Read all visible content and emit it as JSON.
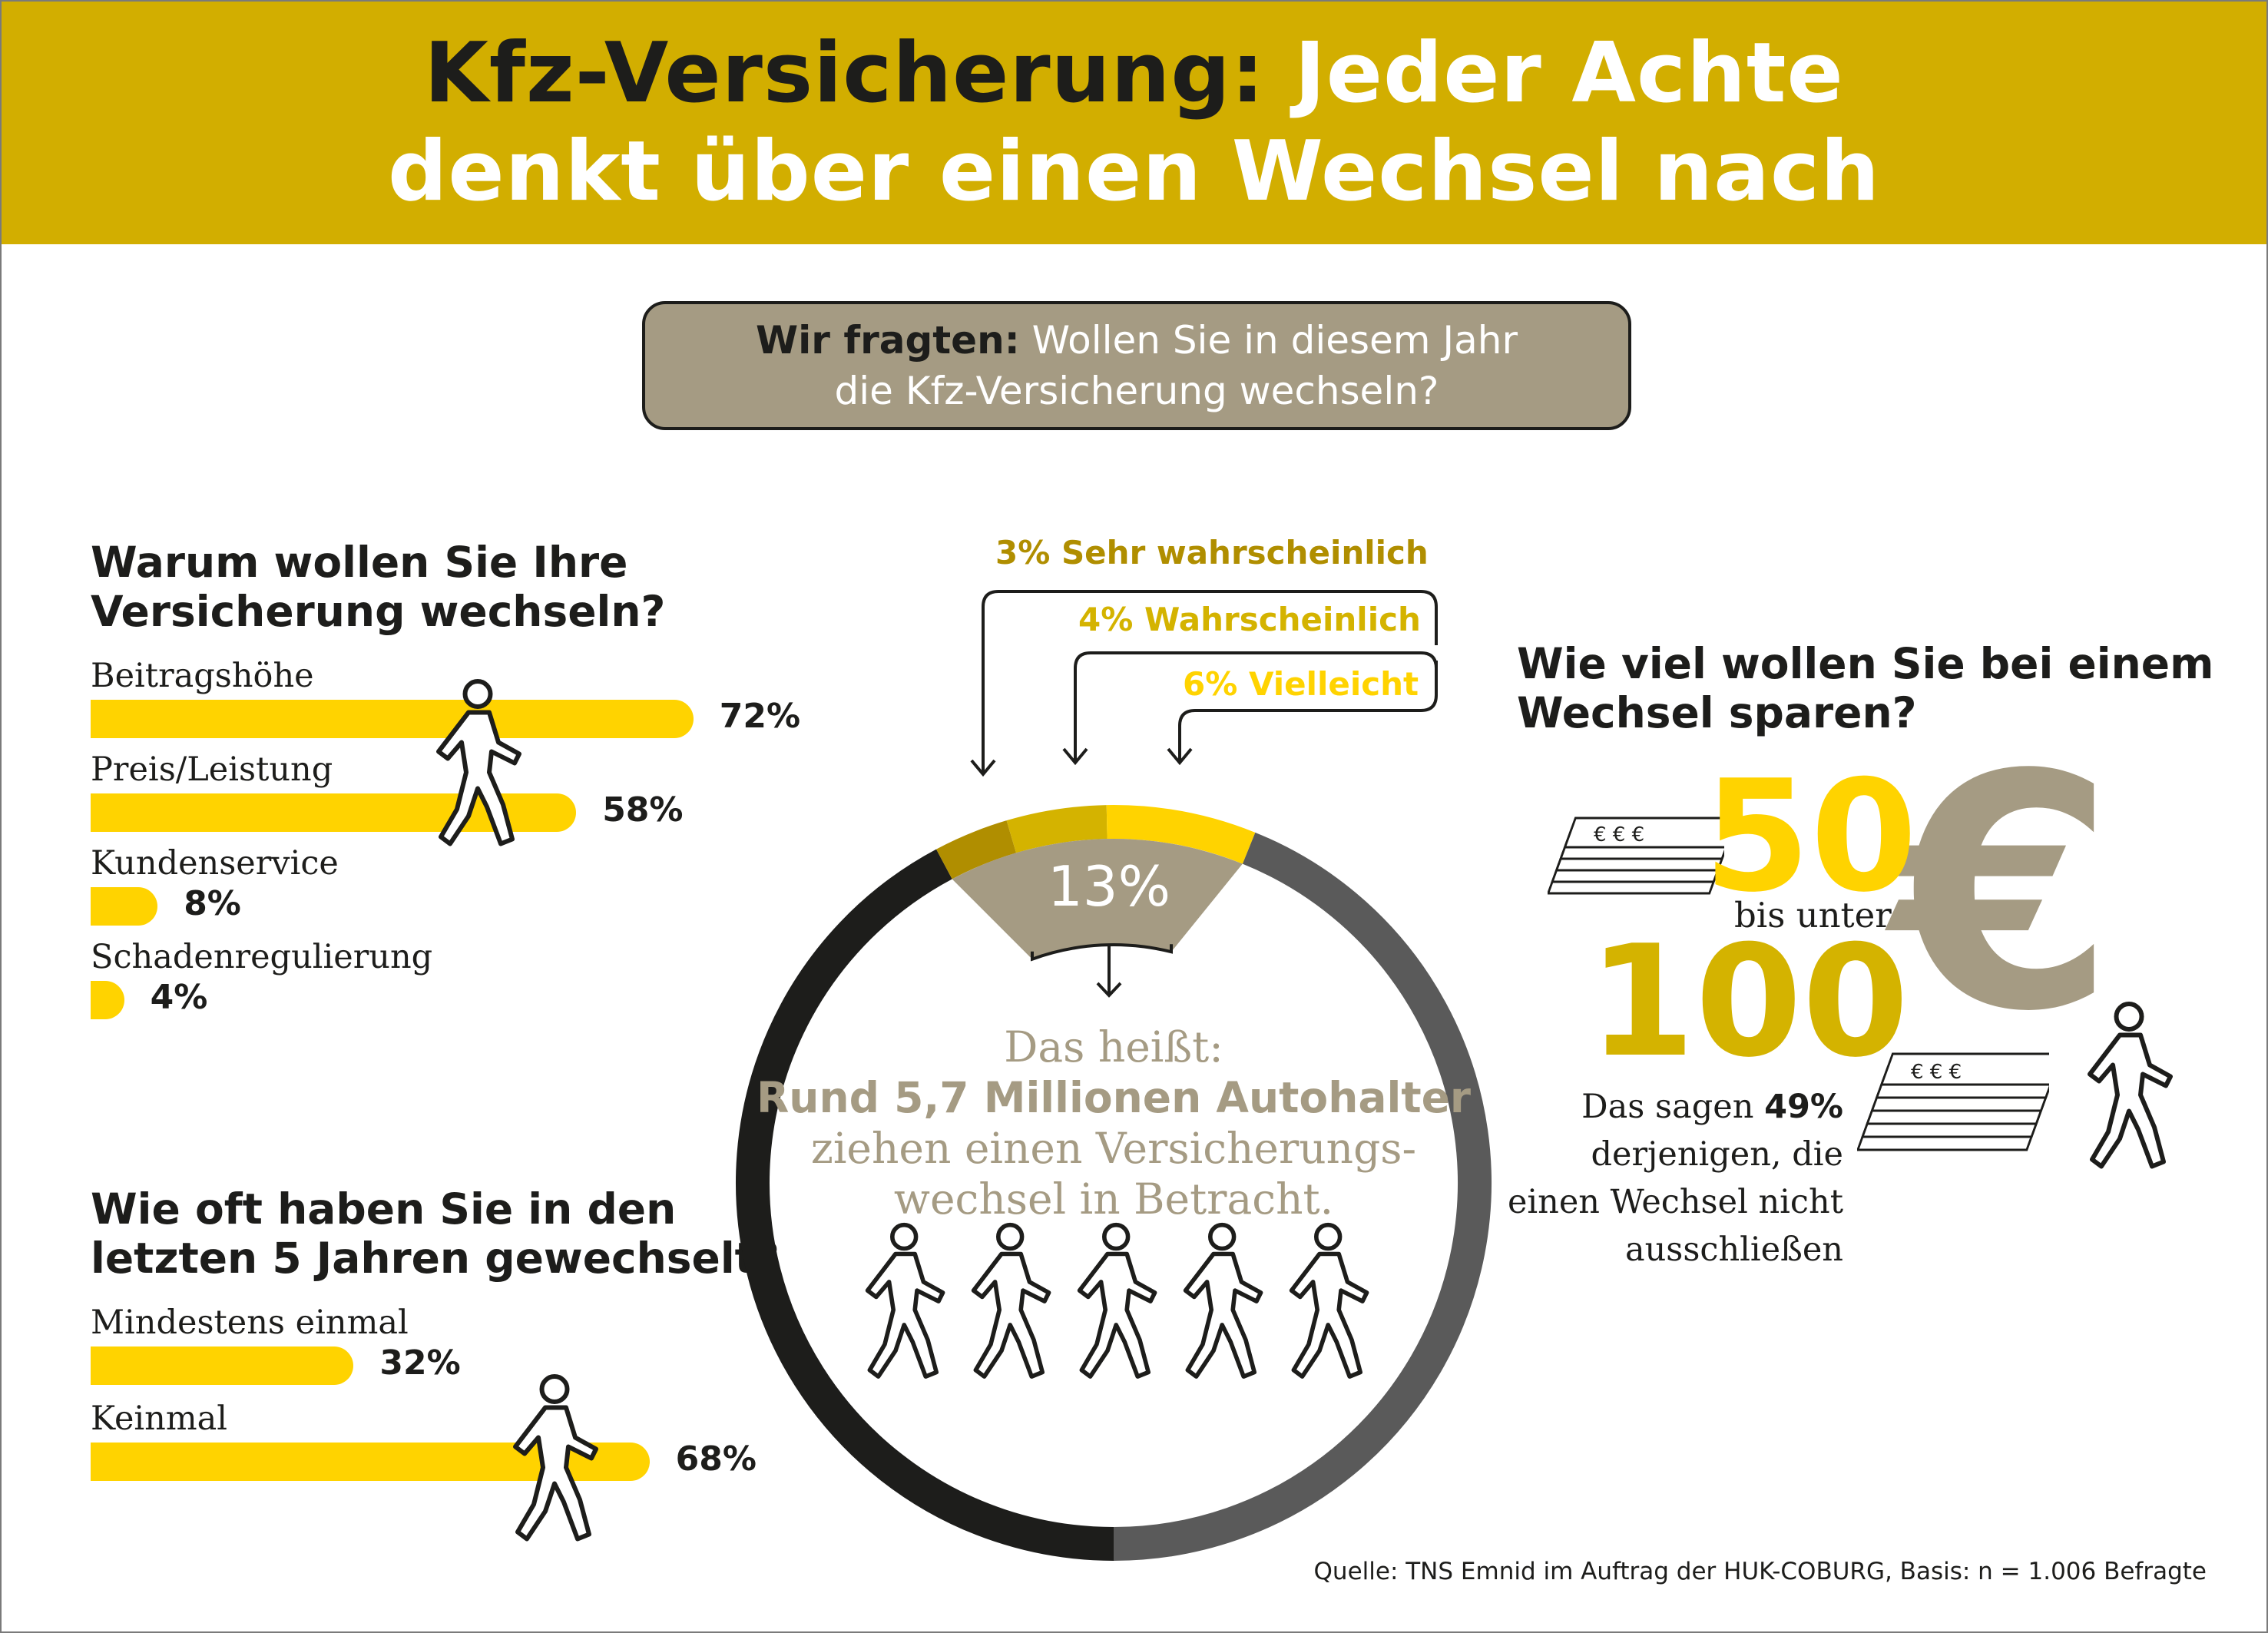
{
  "header": {
    "title_dark": "Kfz-Versicherung:",
    "title_white_1": "Jeder Achte",
    "title_white_2": "denkt über einen Wechsel nach"
  },
  "question": {
    "prefix": "Wir fragten:",
    "line1": "Wollen Sie in diesem Jahr",
    "line2": "die Kfz-Versicherung wechseln?"
  },
  "colors": {
    "gold": "#d2ae00",
    "yellow": "#ffd300",
    "dark_gold": "#b08e00",
    "mid_gold": "#d4b300",
    "taupe": "#a59b83",
    "dark": "#1d1d1b",
    "gray": "#5a5a5a"
  },
  "chart_data": [
    {
      "type": "bar",
      "title": "Warum wollen Sie Ihre Versicherung wechseln?",
      "title_lines": [
        "Warum wollen Sie Ihre",
        "Versicherung wechseln?"
      ],
      "categories": [
        "Beitragshöhe",
        "Preis/Leistung",
        "Kundenservice",
        "Schadenregulierung"
      ],
      "values": [
        72,
        58,
        8,
        4
      ],
      "value_labels": [
        "72%",
        "58%",
        "8%",
        "4%"
      ]
    },
    {
      "type": "bar",
      "title": "Wie oft haben Sie in den letzten 5 Jahren gewechselt?",
      "title_lines": [
        "Wie oft haben Sie in den",
        "letzten 5 Jahren gewechselt?"
      ],
      "categories": [
        "Mindestens einmal",
        "Keinmal"
      ],
      "values": [
        32,
        68
      ],
      "value_labels": [
        "32%",
        "68%"
      ]
    },
    {
      "type": "pie",
      "title": "",
      "slices": [
        {
          "label": "Sehr wahrscheinlich",
          "value": 3,
          "value_label": "3%"
        },
        {
          "label": "Wahrscheinlich",
          "value": 4,
          "value_label": "4%"
        },
        {
          "label": "Vielleicht",
          "value": 6,
          "value_label": "6%"
        }
      ],
      "total_label": "13%"
    }
  ],
  "center": {
    "line1": "Das heißt:",
    "line2": "Rund 5,7 Millionen Autohalter",
    "line3": "ziehen einen Versicherungs-",
    "line4": "wechsel in Betracht."
  },
  "savings": {
    "title_lines": [
      "Wie viel wollen Sie bei einem",
      "Wechsel sparen?"
    ],
    "from": "50",
    "between": "bis unter",
    "to": "100",
    "currency": "€",
    "say_lines": [
      "Das sagen ",
      "derjenigen, die",
      "einen Wechsel nicht",
      "ausschließen"
    ],
    "say_percent": "49%"
  },
  "source": "Quelle: TNS Emnid im Auftrag der HUK-COBURG, Basis: n = 1.006 Befragte"
}
